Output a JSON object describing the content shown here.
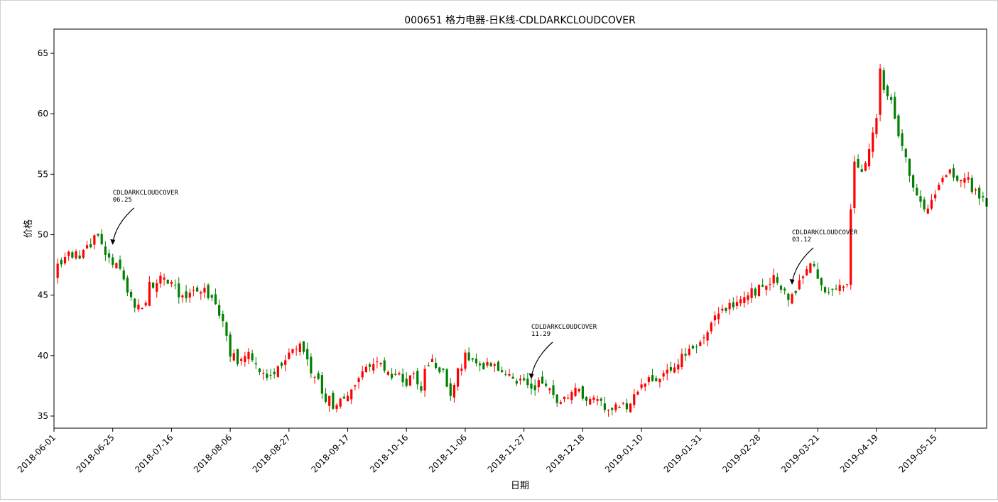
{
  "colors": {
    "up": "#ff0000",
    "down": "#008000",
    "axis": "#000000",
    "background": "#ffffff"
  },
  "chart_data": {
    "type": "candlestick",
    "title": "000651 格力电器-日K线-CDLDARKCLOUDCOVER",
    "xlabel": "日期",
    "ylabel": "价格",
    "ylim": [
      34,
      67
    ],
    "yticks": [
      35,
      40,
      45,
      50,
      55,
      60,
      65
    ],
    "xticks": [
      {
        "i": 0,
        "label": "2018-06-01"
      },
      {
        "i": 16,
        "label": "2018-06-25"
      },
      {
        "i": 32,
        "label": "2018-07-16"
      },
      {
        "i": 48,
        "label": "2018-08-06"
      },
      {
        "i": 64,
        "label": "2018-08-27"
      },
      {
        "i": 80,
        "label": "2018-09-17"
      },
      {
        "i": 96,
        "label": "2018-10-16"
      },
      {
        "i": 112,
        "label": "2018-11-06"
      },
      {
        "i": 128,
        "label": "2018-11-27"
      },
      {
        "i": 144,
        "label": "2018-12-18"
      },
      {
        "i": 160,
        "label": "2019-01-10"
      },
      {
        "i": 176,
        "label": "2019-01-31"
      },
      {
        "i": 192,
        "label": "2019-02-28"
      },
      {
        "i": 208,
        "label": "2019-03-21"
      },
      {
        "i": 224,
        "label": "2019-04-19"
      },
      {
        "i": 240,
        "label": "2019-05-15"
      }
    ],
    "x_range": [
      0,
      254
    ],
    "annotations": [
      {
        "i": 16,
        "price": 49.1,
        "label": "CDLDARKCLOUDCOVER",
        "date": "06.25"
      },
      {
        "i": 130,
        "price": 38.0,
        "label": "CDLDARKCLOUDCOVER",
        "date": "11.29"
      },
      {
        "i": 201,
        "price": 45.8,
        "label": "CDLDARKCLOUDCOVER",
        "date": "03.12"
      }
    ],
    "anchors": [
      [
        0,
        46.9
      ],
      [
        4,
        48.3
      ],
      [
        8,
        48.4
      ],
      [
        12,
        50.2
      ],
      [
        14,
        48.6
      ],
      [
        16,
        47.9
      ],
      [
        18,
        47.0
      ],
      [
        20,
        45.0
      ],
      [
        24,
        43.8
      ],
      [
        26,
        45.8
      ],
      [
        30,
        46.6
      ],
      [
        34,
        45.1
      ],
      [
        38,
        45.0
      ],
      [
        40,
        45.6
      ],
      [
        44,
        44.1
      ],
      [
        46,
        43.0
      ],
      [
        48,
        40.0
      ],
      [
        50,
        39.5
      ],
      [
        52,
        40.2
      ],
      [
        56,
        39.0
      ],
      [
        58,
        38.5
      ],
      [
        62,
        39.2
      ],
      [
        64,
        40.4
      ],
      [
        67,
        40.8
      ],
      [
        70,
        38.8
      ],
      [
        72,
        37.8
      ],
      [
        74,
        36.5
      ],
      [
        76,
        36.0
      ],
      [
        78,
        36.3
      ],
      [
        80,
        37.0
      ],
      [
        82,
        37.8
      ],
      [
        84,
        38.9
      ],
      [
        86,
        39.5
      ],
      [
        88,
        39.9
      ],
      [
        90,
        38.3
      ],
      [
        92,
        38.5
      ],
      [
        94,
        38.2
      ],
      [
        96,
        37.8
      ],
      [
        98,
        38.3
      ],
      [
        100,
        37.5
      ],
      [
        102,
        39.5
      ],
      [
        104,
        39.2
      ],
      [
        106,
        38.5
      ],
      [
        108,
        37.0
      ],
      [
        110,
        38.5
      ],
      [
        112,
        40.1
      ],
      [
        114,
        39.6
      ],
      [
        116,
        39.4
      ],
      [
        118,
        39.2
      ],
      [
        120,
        39.0
      ],
      [
        122,
        38.7
      ],
      [
        124,
        38.4
      ],
      [
        126,
        38.0
      ],
      [
        128,
        37.7
      ],
      [
        130,
        37.4
      ],
      [
        132,
        37.6
      ],
      [
        134,
        37.3
      ],
      [
        136,
        36.8
      ],
      [
        138,
        36.2
      ],
      [
        140,
        36.5
      ],
      [
        142,
        37.6
      ],
      [
        144,
        36.8
      ],
      [
        146,
        36.4
      ],
      [
        148,
        36.0
      ],
      [
        150,
        35.8
      ],
      [
        152,
        35.9
      ],
      [
        154,
        36.2
      ],
      [
        156,
        36.0
      ],
      [
        158,
        36.8
      ],
      [
        160,
        37.4
      ],
      [
        162,
        37.8
      ],
      [
        164,
        38.2
      ],
      [
        166,
        38.6
      ],
      [
        168,
        38.9
      ],
      [
        170,
        39.4
      ],
      [
        172,
        40.0
      ],
      [
        174,
        40.6
      ],
      [
        176,
        41.2
      ],
      [
        178,
        42.2
      ],
      [
        180,
        43.1
      ],
      [
        182,
        43.7
      ],
      [
        184,
        44.0
      ],
      [
        186,
        44.5
      ],
      [
        188,
        44.8
      ],
      [
        190,
        45.2
      ],
      [
        192,
        45.5
      ],
      [
        194,
        46.0
      ],
      [
        196,
        46.6
      ],
      [
        198,
        45.5
      ],
      [
        200,
        44.9
      ],
      [
        202,
        45.4
      ],
      [
        204,
        46.6
      ],
      [
        206,
        47.5
      ],
      [
        208,
        46.6
      ],
      [
        210,
        45.5
      ],
      [
        212,
        45.0
      ],
      [
        214,
        45.5
      ],
      [
        216,
        46.3
      ],
      [
        217,
        51.9
      ],
      [
        218,
        56.0
      ],
      [
        220,
        55.2
      ],
      [
        222,
        57.2
      ],
      [
        224,
        59.5
      ],
      [
        225,
        64.0
      ],
      [
        226,
        62.0
      ],
      [
        228,
        61.2
      ],
      [
        230,
        58.0
      ],
      [
        232,
        56.8
      ],
      [
        234,
        53.8
      ],
      [
        236,
        52.4
      ],
      [
        238,
        52.0
      ],
      [
        240,
        53.6
      ],
      [
        242,
        54.6
      ],
      [
        244,
        55.3
      ],
      [
        246,
        54.4
      ],
      [
        248,
        54.9
      ],
      [
        250,
        53.8
      ],
      [
        252,
        53.4
      ],
      [
        254,
        52.7
      ]
    ]
  }
}
